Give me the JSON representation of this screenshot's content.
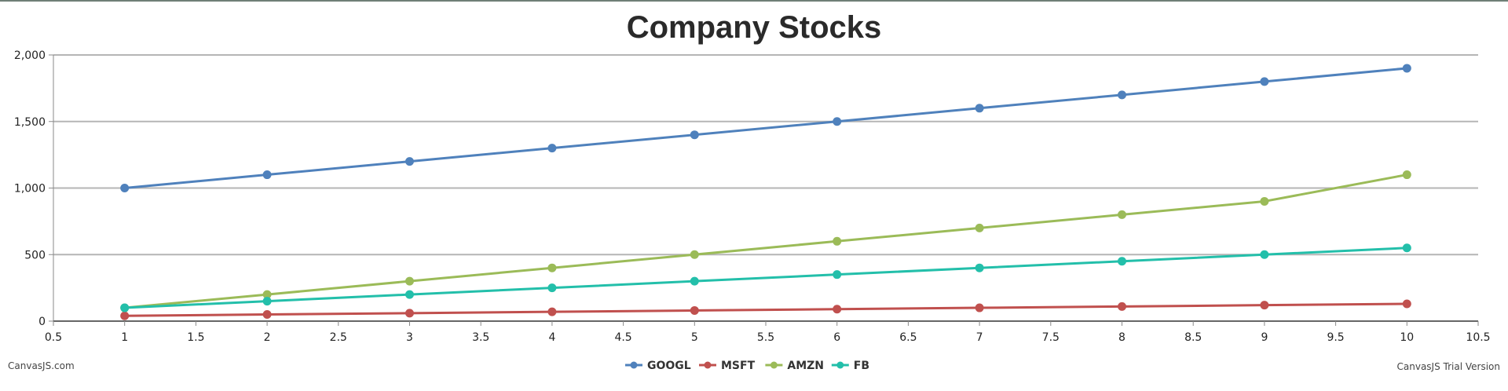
{
  "credits": {
    "left": "CanvasJS.com",
    "right": "CanvasJS Trial Version"
  },
  "chart_data": {
    "type": "line",
    "title": "Company Stocks",
    "xlabel": "",
    "ylabel": "",
    "xlim": [
      0.5,
      10.5
    ],
    "ylim": [
      0,
      2000
    ],
    "x_ticks": [
      0.5,
      1,
      1.5,
      2,
      2.5,
      3,
      3.5,
      4,
      4.5,
      5,
      5.5,
      6,
      6.5,
      7,
      7.5,
      8,
      8.5,
      9,
      9.5,
      10,
      10.5
    ],
    "x_tick_labels": [
      "0.5",
      "1",
      "1.5",
      "2",
      "2.5",
      "3",
      "3.5",
      "4",
      "4.5",
      "5",
      "5.5",
      "6",
      "6.5",
      "7",
      "7.5",
      "8",
      "8.5",
      "9",
      "9.5",
      "10",
      "10.5"
    ],
    "y_ticks": [
      0,
      500,
      1000,
      1500,
      2000
    ],
    "y_tick_labels": [
      "0",
      "500",
      "1,000",
      "1,500",
      "2,000"
    ],
    "grid": "horizontal",
    "legend_position": "bottom-center",
    "x": [
      1,
      2,
      3,
      4,
      5,
      6,
      7,
      8,
      9,
      10
    ],
    "series": [
      {
        "name": "GOOGL",
        "color": "#4f81bc",
        "values": [
          1000,
          1100,
          1200,
          1300,
          1400,
          1500,
          1600,
          1700,
          1800,
          1900
        ]
      },
      {
        "name": "MSFT",
        "color": "#c0504e",
        "values": [
          40,
          50,
          60,
          70,
          80,
          90,
          100,
          110,
          120,
          130
        ]
      },
      {
        "name": "AMZN",
        "color": "#9bbb58",
        "values": [
          100,
          200,
          300,
          400,
          500,
          600,
          700,
          800,
          900,
          1100
        ]
      },
      {
        "name": "FB",
        "color": "#23bfaa",
        "values": [
          100,
          150,
          200,
          250,
          300,
          350,
          400,
          450,
          500,
          550
        ]
      }
    ]
  }
}
